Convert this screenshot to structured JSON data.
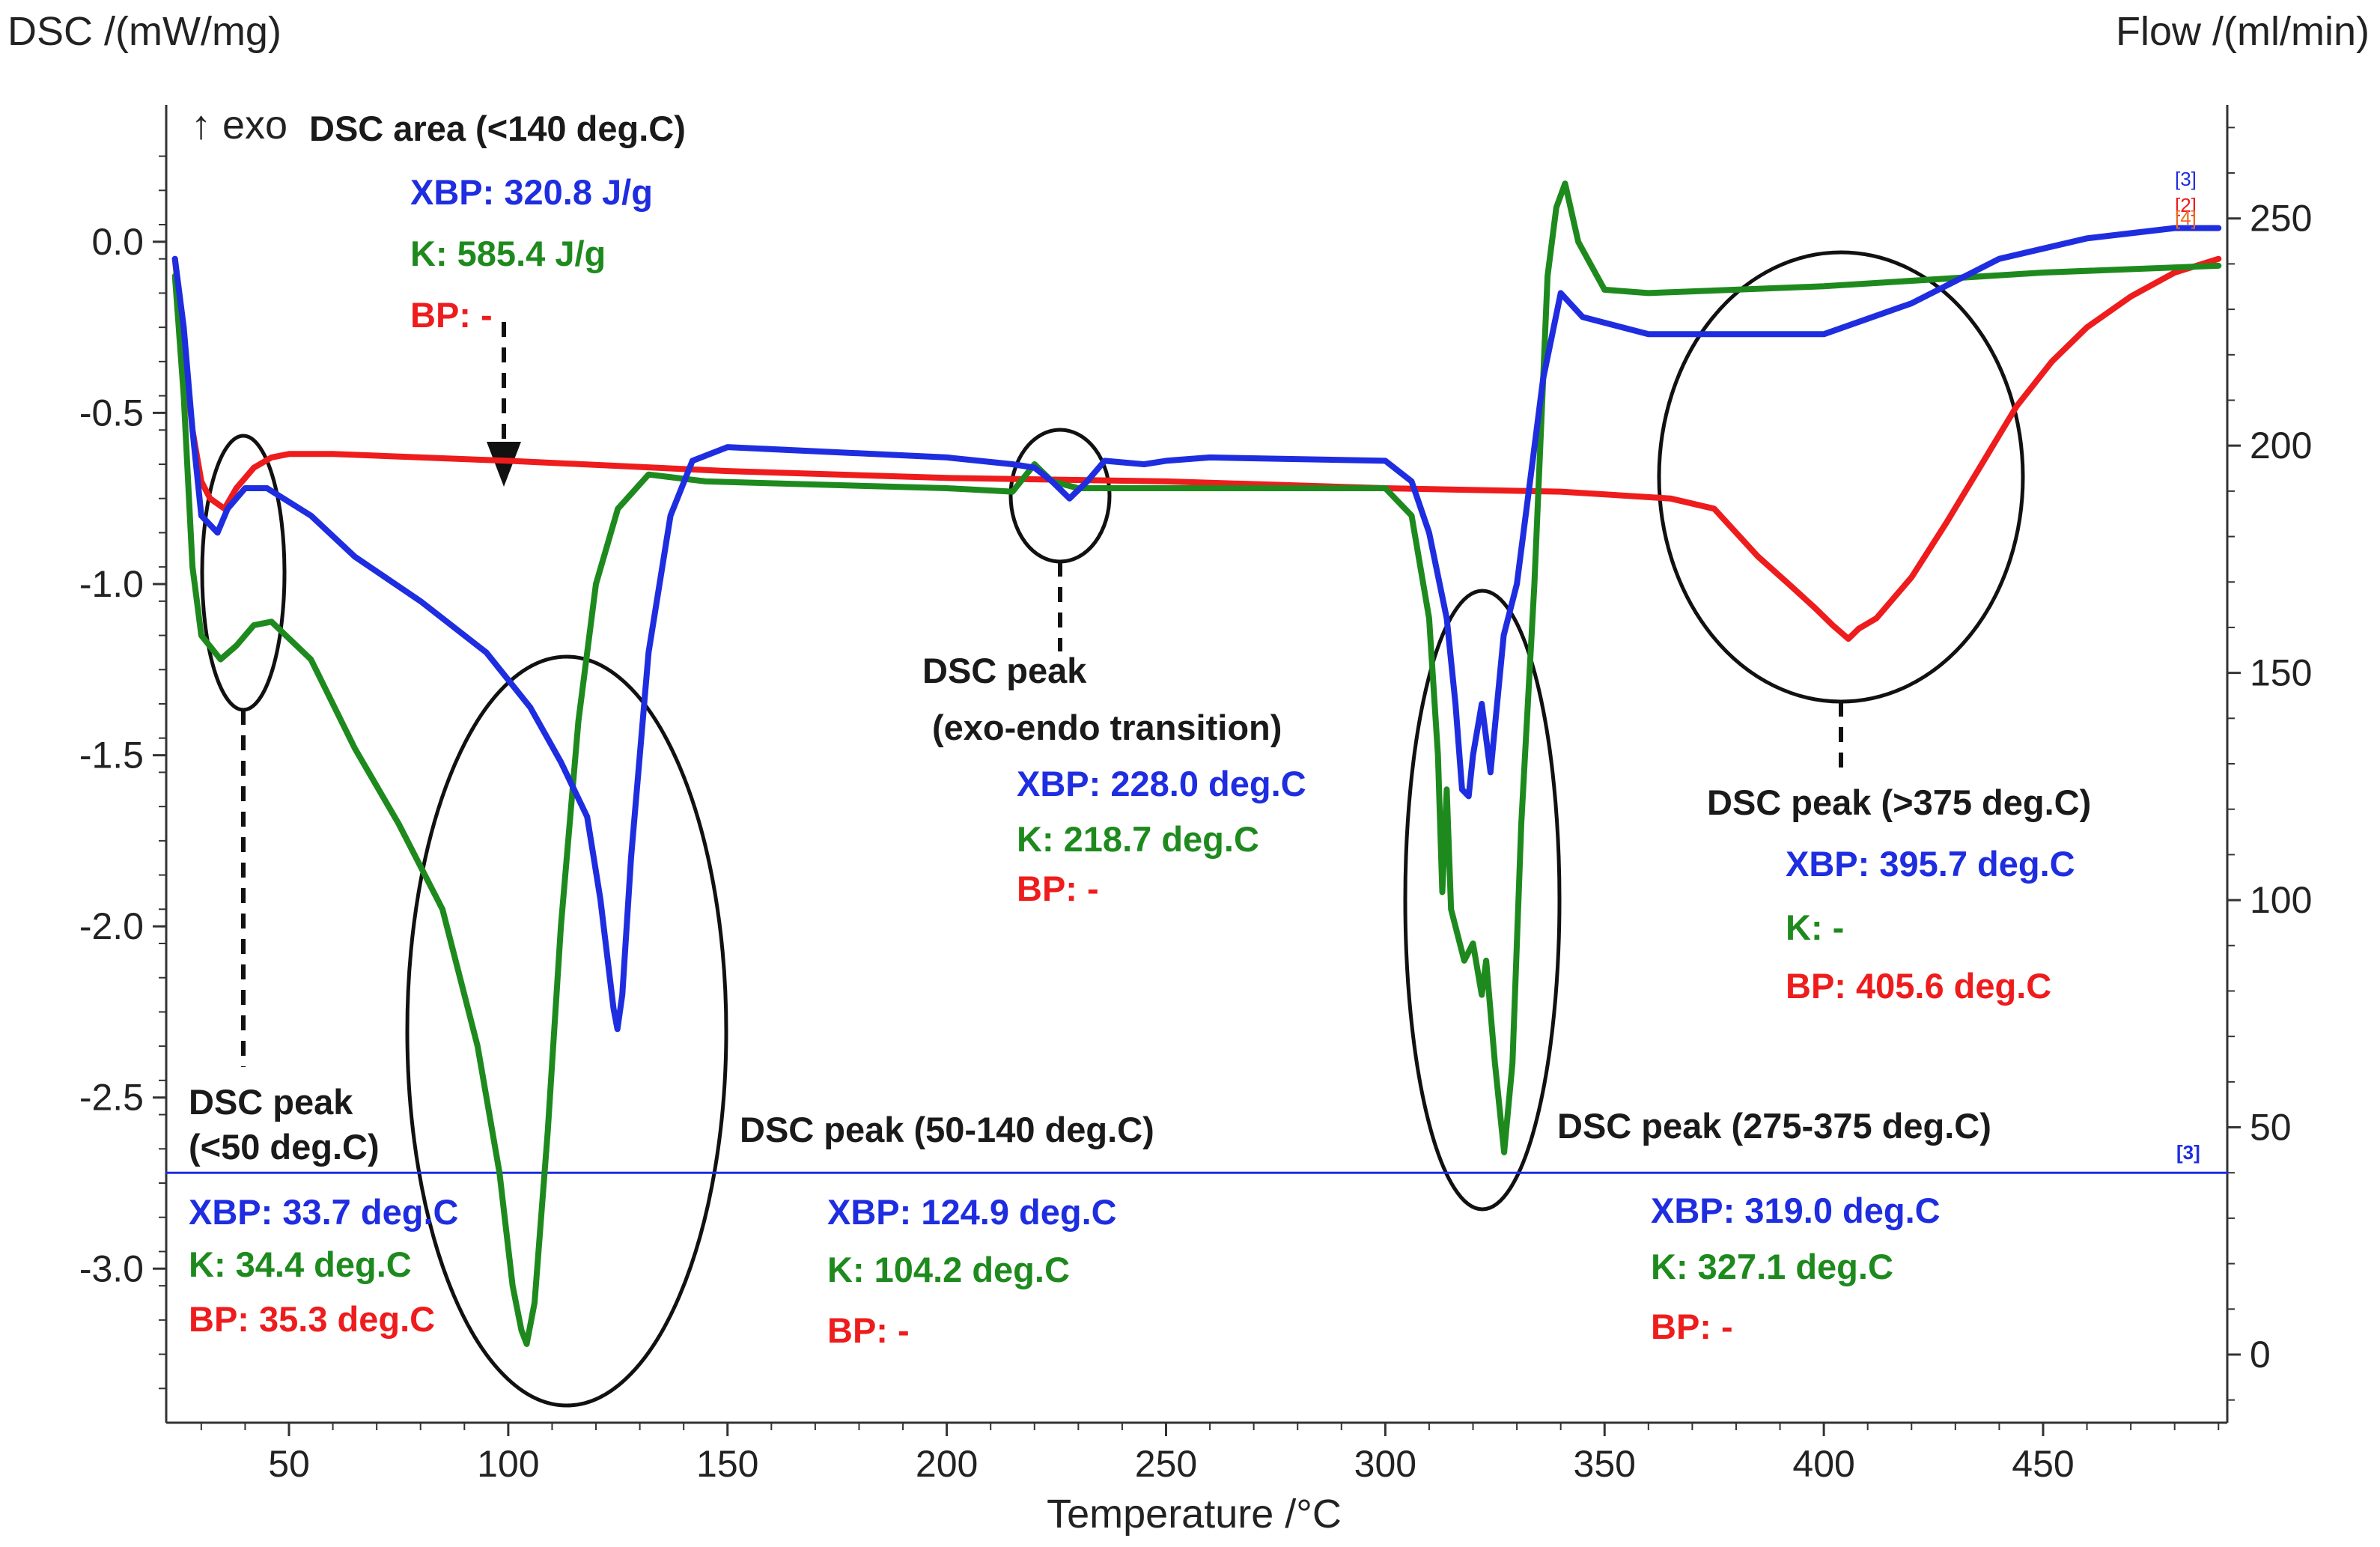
{
  "chart_data": {
    "type": "line",
    "xlabel": "Temperature /°C",
    "ylabel_left": "DSC /(mW/mg)",
    "ylabel_right": "Flow /(ml/min)",
    "exo_label": "↑ exo",
    "xlim": [
      22,
      492
    ],
    "ylim_left": [
      -3.45,
      0.4
    ],
    "ylim_right": [
      -15,
      275
    ],
    "x_ticks": [
      50,
      100,
      150,
      200,
      250,
      300,
      350,
      400,
      450
    ],
    "x_tick_labels": [
      "50",
      "100",
      "150",
      "200",
      "250",
      "300",
      "350",
      "400",
      "450"
    ],
    "y_left_ticks": [
      0.0,
      -0.5,
      -1.0,
      -1.5,
      -2.0,
      -2.5,
      -3.0
    ],
    "y_left_tick_labels": [
      "0.0",
      "-0.5",
      "-1.0",
      "-1.5",
      "-2.0",
      "-2.5",
      "-3.0"
    ],
    "y_right_ticks": [
      250,
      200,
      150,
      100,
      50,
      0
    ],
    "y_right_tick_labels": [
      "250",
      "200",
      "150",
      "100",
      "50",
      "0"
    ],
    "colors": {
      "XBP": "#1f2de0",
      "K": "#1e8a1e",
      "BP": "#ee1c1c",
      "flow": "#1f2de0"
    },
    "series": [
      {
        "name": "XBP",
        "x": [
          24,
          26,
          28,
          30,
          33.7,
          36,
          40,
          45,
          55,
          65,
          80,
          95,
          105,
          112,
          118,
          121,
          124,
          124.9,
          126,
          128,
          132,
          137,
          142,
          150,
          200,
          215,
          220,
          224,
          228,
          232,
          236,
          245,
          250,
          260,
          300,
          306,
          310,
          314,
          316,
          317.5,
          319,
          320,
          322,
          324,
          327,
          330,
          333,
          336,
          340,
          345,
          360,
          400,
          420,
          440,
          460,
          480,
          490
        ],
        "y": [
          -0.05,
          -0.25,
          -0.55,
          -0.8,
          -0.85,
          -0.78,
          -0.72,
          -0.72,
          -0.8,
          -0.92,
          -1.05,
          -1.2,
          -1.36,
          -1.52,
          -1.68,
          -1.92,
          -2.24,
          -2.3,
          -2.2,
          -1.8,
          -1.2,
          -0.8,
          -0.64,
          -0.6,
          -0.63,
          -0.65,
          -0.66,
          -0.7,
          -0.75,
          -0.7,
          -0.64,
          -0.65,
          -0.64,
          -0.63,
          -0.64,
          -0.7,
          -0.85,
          -1.1,
          -1.35,
          -1.6,
          -1.62,
          -1.5,
          -1.35,
          -1.55,
          -1.15,
          -1.0,
          -0.7,
          -0.4,
          -0.15,
          -0.22,
          -0.27,
          -0.27,
          -0.18,
          -0.05,
          0.01,
          0.04,
          0.04
        ]
      },
      {
        "name": "K",
        "x": [
          24,
          26,
          28,
          30,
          34.4,
          38,
          42,
          46,
          55,
          65,
          75,
          85,
          93,
          98,
          101,
          103,
          104.2,
          106,
          109,
          112,
          116,
          120,
          125,
          132,
          145,
          200,
          215,
          220,
          224,
          230,
          300,
          306,
          310,
          312,
          313,
          314,
          315,
          318,
          320,
          322,
          323,
          325,
          327.1,
          329,
          331,
          334,
          337,
          339,
          341,
          344,
          350,
          360,
          400,
          450,
          490
        ],
        "y": [
          -0.1,
          -0.45,
          -0.95,
          -1.15,
          -1.22,
          -1.18,
          -1.12,
          -1.11,
          -1.22,
          -1.48,
          -1.7,
          -1.95,
          -2.35,
          -2.72,
          -3.05,
          -3.18,
          -3.22,
          -3.1,
          -2.6,
          -2.0,
          -1.4,
          -1.0,
          -0.78,
          -0.68,
          -0.7,
          -0.72,
          -0.73,
          -0.65,
          -0.7,
          -0.72,
          -0.72,
          -0.8,
          -1.1,
          -1.5,
          -1.9,
          -1.6,
          -1.95,
          -2.1,
          -2.05,
          -2.2,
          -2.1,
          -2.4,
          -2.66,
          -2.4,
          -1.7,
          -1.0,
          -0.1,
          0.1,
          0.17,
          0.0,
          -0.14,
          -0.15,
          -0.13,
          -0.09,
          -0.07
        ]
      },
      {
        "name": "BP",
        "x": [
          24,
          26,
          28,
          30,
          32,
          35.3,
          38,
          42,
          46,
          50,
          60,
          100,
          150,
          200,
          250,
          300,
          340,
          365,
          375,
          380,
          385,
          392,
          398,
          402,
          405.6,
          408,
          412,
          416,
          420,
          428,
          436,
          444,
          452,
          460,
          470,
          480,
          490
        ],
        "y": [
          -0.05,
          -0.3,
          -0.55,
          -0.7,
          -0.75,
          -0.78,
          -0.72,
          -0.66,
          -0.63,
          -0.62,
          -0.62,
          -0.64,
          -0.67,
          -0.69,
          -0.7,
          -0.72,
          -0.73,
          -0.75,
          -0.78,
          -0.85,
          -0.92,
          -1.0,
          -1.07,
          -1.12,
          -1.16,
          -1.13,
          -1.1,
          -1.04,
          -0.98,
          -0.82,
          -0.65,
          -0.48,
          -0.35,
          -0.25,
          -0.16,
          -0.09,
          -0.05
        ]
      },
      {
        "name": "Flow",
        "axis": "right",
        "x": [
          22,
          492
        ],
        "y": [
          40,
          40
        ]
      }
    ],
    "annotations": {
      "area": {
        "title": "DSC area (<140 deg.C)",
        "xbp": "XBP: 320.8 J/g",
        "k": "K: 585.4 J/g",
        "bp": "BP: -"
      },
      "peak_lt50": {
        "title_line1": "DSC peak",
        "title_line2": "(<50 deg.C)",
        "xbp": "XBP: 33.7 deg.C",
        "k": "K: 34.4 deg.C",
        "bp": "BP: 35.3 deg.C"
      },
      "peak_50_140": {
        "title": "DSC peak (50-140 deg.C)",
        "xbp": "XBP: 124.9 deg.C",
        "k": "K: 104.2 deg.C",
        "bp": "BP: -"
      },
      "peak_exo_endo": {
        "title_line1": "DSC peak",
        "title_line2": "(exo-endo transition)",
        "xbp": "XBP: 228.0 deg.C",
        "k": "K: 218.7 deg.C",
        "bp": "BP: -"
      },
      "peak_275_375": {
        "title": "DSC peak (275-375 deg.C)",
        "xbp": "XBP: 319.0 deg.C",
        "k": "K: 327.1 deg.C",
        "bp": "BP: -"
      },
      "peak_gt375": {
        "title": "DSC peak (>375 deg.C)",
        "xbp": "XBP: 395.7 deg.C",
        "k": "K: -",
        "bp": "BP: 405.6 deg.C"
      }
    },
    "series_tags": {
      "curve_end_top": "[3]",
      "curve_end_mid": "[2]",
      "curve_end_bottom": "[4]",
      "flow_line": "[3]"
    }
  }
}
